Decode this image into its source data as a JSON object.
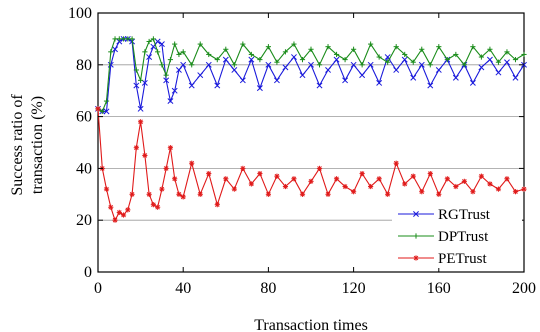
{
  "chart_data": {
    "type": "line",
    "title": "",
    "xlabel": "Transaction times",
    "ylabel": [
      "Success ratio of",
      "transaction (%)"
    ],
    "xlim": [
      0,
      200
    ],
    "ylim": [
      0,
      100
    ],
    "xticks": [
      0,
      40,
      80,
      120,
      160,
      200
    ],
    "yticks": [
      0,
      20,
      40,
      60,
      80,
      100
    ],
    "xtick_labels": [
      "0",
      "40",
      "80",
      "120",
      "160",
      "200"
    ],
    "ytick_labels": [
      "0",
      "20",
      "40",
      "60",
      "80",
      "100"
    ],
    "grid": "horizontal",
    "legend": "bottom-right",
    "series": [
      {
        "name": "RGTrust",
        "color": "#1a1adb",
        "marker": "x",
        "x": [
          0,
          2,
          4,
          6,
          8,
          10,
          12,
          14,
          16,
          18,
          20,
          22,
          24,
          26,
          28,
          30,
          32,
          34,
          36,
          38,
          40,
          44,
          48,
          52,
          56,
          60,
          64,
          68,
          72,
          76,
          80,
          84,
          88,
          92,
          96,
          100,
          104,
          108,
          112,
          116,
          120,
          124,
          128,
          132,
          136,
          140,
          144,
          148,
          152,
          156,
          160,
          164,
          168,
          172,
          176,
          180,
          184,
          188,
          192,
          196,
          200
        ],
        "values": [
          63,
          62,
          62,
          80,
          86,
          89,
          90,
          90,
          89,
          72,
          63,
          73,
          83,
          87,
          89,
          88,
          74,
          66,
          70,
          78,
          80,
          72,
          76,
          80,
          72,
          82,
          78,
          74,
          82,
          71,
          80,
          74,
          79,
          83,
          76,
          80,
          72,
          78,
          82,
          74,
          80,
          76,
          80,
          73,
          83,
          78,
          82,
          75,
          80,
          72,
          78,
          82,
          75,
          80,
          73,
          79,
          82,
          77,
          81,
          75,
          80
        ]
      },
      {
        "name": "DPTrust",
        "color": "#1a8c1a",
        "marker": "+",
        "x": [
          0,
          2,
          4,
          6,
          8,
          10,
          12,
          14,
          16,
          18,
          20,
          22,
          24,
          26,
          28,
          30,
          32,
          34,
          36,
          38,
          40,
          44,
          48,
          52,
          56,
          60,
          64,
          68,
          72,
          76,
          80,
          84,
          88,
          92,
          96,
          100,
          104,
          108,
          112,
          116,
          120,
          124,
          128,
          132,
          136,
          140,
          144,
          148,
          152,
          156,
          160,
          164,
          168,
          172,
          176,
          180,
          184,
          188,
          192,
          196,
          200
        ],
        "values": [
          63,
          62,
          66,
          85,
          90,
          90,
          90,
          90,
          90,
          78,
          74,
          85,
          89,
          90,
          85,
          80,
          76,
          82,
          88,
          84,
          85,
          80,
          88,
          84,
          82,
          86,
          80,
          88,
          84,
          82,
          87,
          81,
          85,
          88,
          82,
          86,
          80,
          87,
          84,
          82,
          86,
          80,
          88,
          83,
          81,
          87,
          84,
          81,
          86,
          80,
          87,
          82,
          84,
          80,
          87,
          83,
          86,
          81,
          85,
          82,
          84
        ]
      },
      {
        "name": "PETrust",
        "color": "#e01a1a",
        "marker": "*",
        "x": [
          0,
          2,
          4,
          6,
          8,
          10,
          12,
          14,
          16,
          18,
          20,
          22,
          24,
          26,
          28,
          30,
          32,
          34,
          36,
          38,
          40,
          44,
          48,
          52,
          56,
          60,
          64,
          68,
          72,
          76,
          80,
          84,
          88,
          92,
          96,
          100,
          104,
          108,
          112,
          116,
          120,
          124,
          128,
          132,
          136,
          140,
          144,
          148,
          152,
          156,
          160,
          164,
          168,
          172,
          176,
          180,
          184,
          188,
          192,
          196,
          200
        ],
        "values": [
          63,
          40,
          32,
          25,
          20,
          23,
          22,
          24,
          30,
          48,
          58,
          45,
          30,
          26,
          25,
          32,
          40,
          48,
          36,
          30,
          29,
          42,
          30,
          38,
          26,
          36,
          32,
          40,
          34,
          38,
          30,
          37,
          33,
          36,
          30,
          35,
          40,
          30,
          36,
          33,
          31,
          38,
          33,
          36,
          30,
          42,
          34,
          37,
          31,
          38,
          30,
          36,
          33,
          35,
          31,
          37,
          34,
          32,
          36,
          31,
          32
        ]
      }
    ]
  }
}
